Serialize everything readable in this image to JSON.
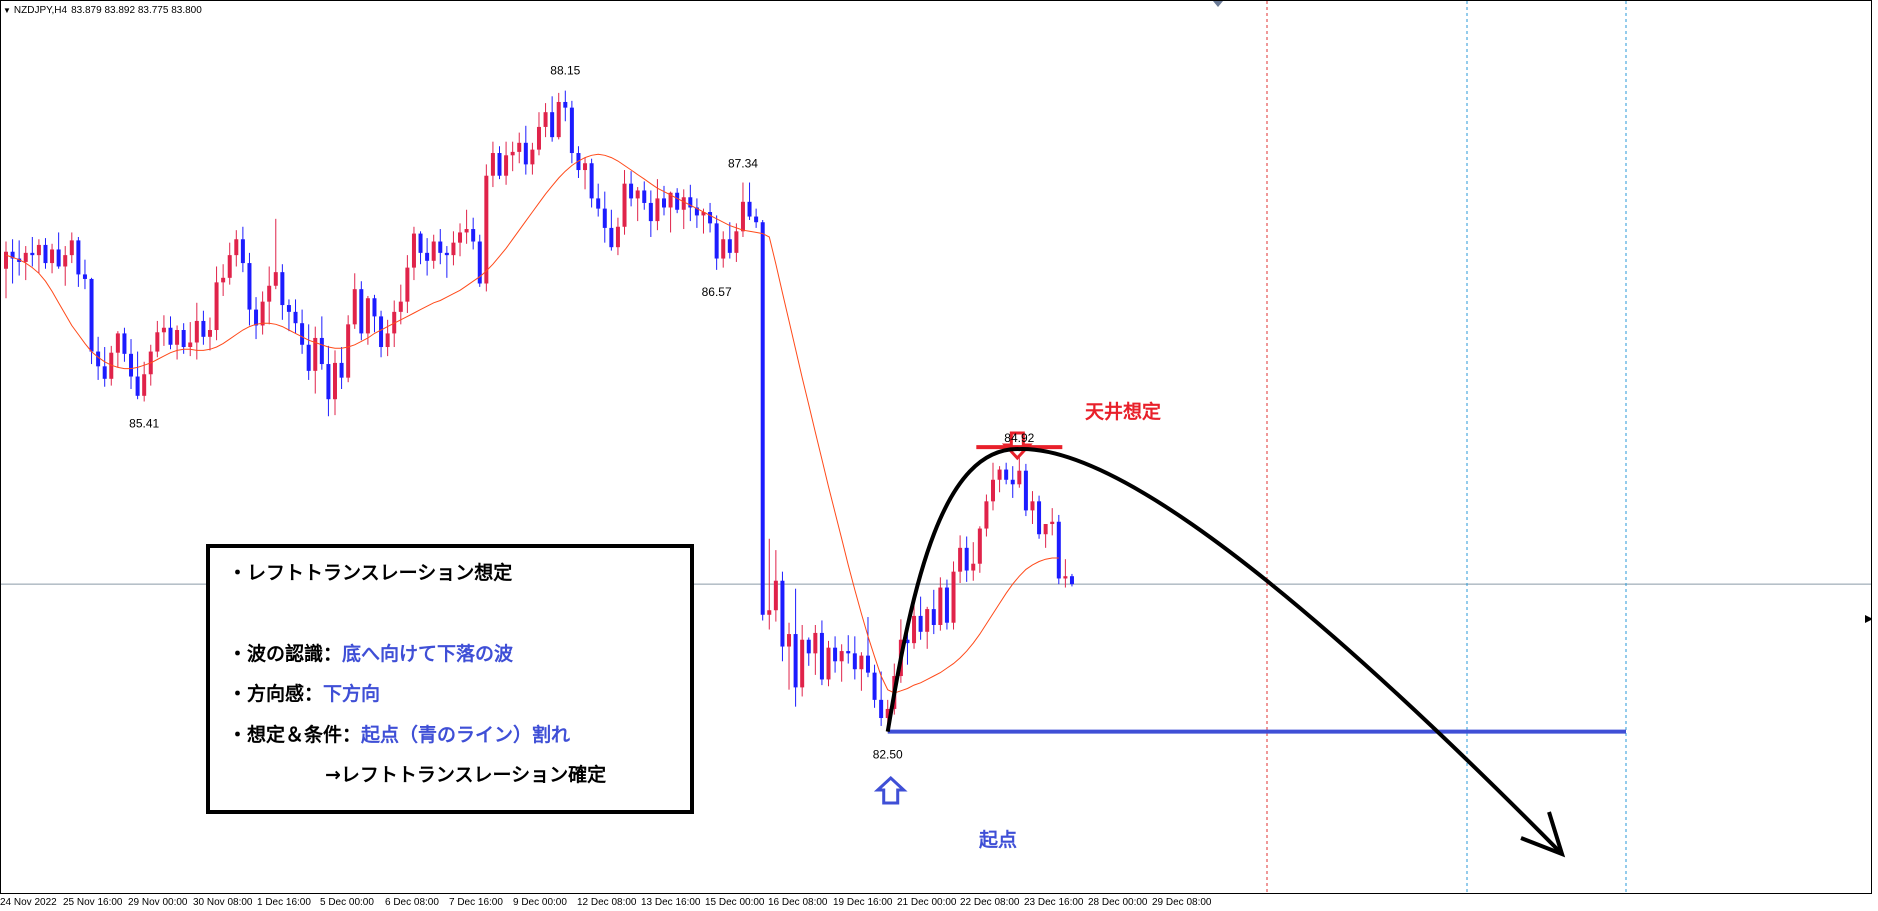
{
  "symbol": {
    "name": "NZDJPY,H4",
    "open": "83.879",
    "high": "83.892",
    "low": "83.775",
    "close": "83.800"
  },
  "annotations": {
    "high_label": "88.15",
    "h2_label": "87.34",
    "l2_label": "86.57",
    "low_left": "85.41",
    "top_value": "84.92",
    "start_value": "82.50",
    "top_title": "天井想定",
    "start_title": "起点"
  },
  "note": {
    "line1": "・レフトトランスレーション想定",
    "line2_label": "・波の認識：",
    "line2_value": "底へ向けて下落の波",
    "line3_label": "・方向感：",
    "line3_value": "下方向",
    "line4_label": "・想定＆条件：",
    "line4_value": "起点（青のライン）割れ",
    "line5": "→レフトトランスレーション確定"
  },
  "xaxis_labels": [
    "24 Nov 2022",
    "25 Nov 16:00",
    "29 Nov 00:00",
    "30 Nov 08:00",
    "1 Dec 16:00",
    "5 Dec 00:00",
    "6 Dec 08:00",
    "7 Dec 16:00",
    "9 Dec 00:00",
    "12 Dec 08:00",
    "13 Dec 16:00",
    "15 Dec 00:00",
    "16 Dec 08:00",
    "19 Dec 16:00",
    "21 Dec 00:00",
    "22 Dec 08:00",
    "23 Dec 16:00",
    "28 Dec 00:00",
    "29 Dec 08:00"
  ],
  "colors": {
    "bull": "#e0234a",
    "bear": "#1c1cff",
    "ma": "#ff4a1a",
    "red_marker": "#e8202a",
    "blue_line": "#3f4fd6",
    "vline_red": "#e03030",
    "vline_blue": "#2a9ad8",
    "hline": "#8a9aa8"
  },
  "chart_data": {
    "type": "candlestick",
    "ylim": [
      81.06,
      88.94
    ],
    "current_price": 83.8,
    "start_level": 82.5,
    "top_level": 84.92,
    "candles": [
      [
        86.58,
        86.82,
        86.32,
        86.73
      ],
      [
        86.73,
        86.84,
        86.45,
        86.67
      ],
      [
        86.67,
        86.83,
        86.52,
        86.64
      ],
      [
        86.64,
        86.78,
        86.48,
        86.72
      ],
      [
        86.72,
        86.86,
        86.6,
        86.7
      ],
      [
        86.7,
        86.84,
        86.54,
        86.79
      ],
      [
        86.79,
        86.85,
        86.58,
        86.63
      ],
      [
        86.63,
        86.8,
        86.54,
        86.75
      ],
      [
        86.75,
        86.9,
        86.58,
        86.6
      ],
      [
        86.6,
        86.78,
        86.43,
        86.7
      ],
      [
        86.7,
        86.9,
        86.63,
        86.83
      ],
      [
        86.83,
        86.86,
        86.42,
        86.53
      ],
      [
        86.53,
        86.66,
        86.4,
        86.49
      ],
      [
        86.49,
        86.5,
        85.74,
        85.85
      ],
      [
        85.85,
        85.98,
        85.6,
        85.72
      ],
      [
        85.72,
        85.89,
        85.54,
        85.61
      ],
      [
        85.61,
        85.9,
        85.55,
        85.84
      ],
      [
        85.84,
        86.03,
        85.71,
        86.01
      ],
      [
        86.01,
        86.06,
        85.76,
        85.83
      ],
      [
        85.83,
        85.96,
        85.52,
        85.63
      ],
      [
        85.63,
        85.85,
        85.43,
        85.46
      ],
      [
        85.46,
        85.76,
        85.41,
        85.65
      ],
      [
        85.65,
        85.91,
        85.55,
        85.85
      ],
      [
        85.85,
        86.12,
        85.8,
        86.02
      ],
      [
        86.02,
        86.17,
        85.9,
        86.06
      ],
      [
        86.06,
        86.16,
        85.87,
        85.91
      ],
      [
        85.91,
        86.08,
        85.78,
        86.04
      ],
      [
        86.04,
        86.1,
        85.83,
        85.89
      ],
      [
        85.89,
        86.11,
        85.81,
        85.93
      ],
      [
        85.93,
        86.28,
        85.78,
        86.12
      ],
      [
        86.12,
        86.21,
        85.91,
        85.98
      ],
      [
        85.98,
        86.15,
        85.86,
        86.04
      ],
      [
        86.04,
        86.6,
        85.95,
        86.46
      ],
      [
        86.46,
        86.62,
        86.34,
        86.5
      ],
      [
        86.5,
        86.81,
        86.44,
        86.7
      ],
      [
        86.7,
        86.92,
        86.6,
        86.84
      ],
      [
        86.84,
        86.95,
        86.55,
        86.63
      ],
      [
        86.63,
        86.72,
        86.08,
        86.22
      ],
      [
        86.22,
        86.33,
        85.96,
        86.08
      ],
      [
        86.08,
        86.38,
        86.0,
        86.29
      ],
      [
        86.29,
        86.6,
        86.09,
        86.43
      ],
      [
        86.43,
        87.02,
        86.4,
        86.55
      ],
      [
        86.55,
        86.62,
        86.13,
        86.26
      ],
      [
        86.26,
        86.31,
        86.03,
        86.2
      ],
      [
        86.2,
        86.31,
        86.01,
        86.1
      ],
      [
        86.1,
        86.22,
        85.83,
        85.91
      ],
      [
        85.91,
        86.09,
        85.6,
        85.68
      ],
      [
        85.68,
        86.07,
        85.48,
        85.97
      ],
      [
        85.97,
        86.16,
        85.69,
        85.74
      ],
      [
        85.74,
        85.9,
        85.28,
        85.43
      ],
      [
        85.43,
        85.86,
        85.29,
        85.75
      ],
      [
        85.75,
        85.89,
        85.52,
        85.62
      ],
      [
        85.62,
        86.17,
        85.58,
        86.09
      ],
      [
        86.09,
        86.54,
        86.05,
        86.4
      ],
      [
        86.4,
        86.47,
        85.95,
        86.01
      ],
      [
        86.01,
        86.34,
        85.91,
        86.32
      ],
      [
        86.32,
        86.35,
        86.02,
        86.16
      ],
      [
        86.16,
        86.21,
        85.8,
        85.89
      ],
      [
        85.89,
        86.13,
        85.81,
        86.01
      ],
      [
        86.01,
        86.3,
        85.89,
        86.2
      ],
      [
        86.2,
        86.44,
        86.09,
        86.29
      ],
      [
        86.29,
        86.7,
        86.19,
        86.59
      ],
      [
        86.59,
        86.95,
        86.48,
        86.89
      ],
      [
        86.89,
        86.91,
        86.62,
        86.72
      ],
      [
        86.72,
        86.85,
        86.52,
        86.65
      ],
      [
        86.65,
        86.88,
        86.58,
        86.82
      ],
      [
        86.82,
        86.93,
        86.62,
        86.72
      ],
      [
        86.72,
        86.78,
        86.5,
        86.7
      ],
      [
        86.7,
        86.91,
        86.61,
        86.81
      ],
      [
        86.81,
        86.98,
        86.69,
        86.9
      ],
      [
        86.9,
        87.1,
        86.8,
        86.93
      ],
      [
        86.93,
        87.03,
        86.75,
        86.82
      ],
      [
        86.82,
        86.88,
        86.42,
        86.45
      ],
      [
        86.45,
        87.5,
        86.38,
        87.4
      ],
      [
        87.4,
        87.7,
        87.3,
        87.6
      ],
      [
        87.6,
        87.66,
        87.37,
        87.4
      ],
      [
        87.4,
        87.7,
        87.32,
        87.58
      ],
      [
        87.58,
        87.7,
        87.44,
        87.61
      ],
      [
        87.61,
        87.78,
        87.51,
        87.69
      ],
      [
        87.69,
        87.84,
        87.41,
        87.5
      ],
      [
        87.5,
        87.69,
        87.41,
        87.63
      ],
      [
        87.63,
        87.96,
        87.58,
        87.83
      ],
      [
        87.83,
        88.04,
        87.74,
        87.96
      ],
      [
        87.96,
        88.1,
        87.7,
        87.74
      ],
      [
        87.74,
        88.13,
        87.72,
        88.05
      ],
      [
        88.05,
        88.15,
        87.88,
        88.0
      ],
      [
        88.0,
        88.06,
        87.51,
        87.6
      ],
      [
        87.6,
        87.66,
        87.38,
        87.45
      ],
      [
        87.45,
        87.56,
        87.28,
        87.51
      ],
      [
        87.51,
        87.55,
        87.12,
        87.2
      ],
      [
        87.2,
        87.33,
        87.04,
        87.11
      ],
      [
        87.11,
        87.26,
        86.81,
        86.94
      ],
      [
        86.94,
        87.1,
        86.74,
        86.77
      ],
      [
        86.77,
        87.03,
        86.7,
        86.95
      ],
      [
        86.95,
        87.45,
        86.88,
        87.33
      ],
      [
        87.33,
        87.44,
        87.13,
        87.2
      ],
      [
        87.2,
        87.3,
        87.0,
        87.27
      ],
      [
        87.27,
        87.35,
        87.1,
        87.16
      ],
      [
        87.16,
        87.27,
        86.86,
        87.0
      ],
      [
        87.0,
        87.37,
        86.92,
        87.2
      ],
      [
        87.2,
        87.31,
        87.05,
        87.12
      ],
      [
        87.12,
        87.26,
        86.9,
        87.25
      ],
      [
        87.25,
        87.29,
        87.07,
        87.1
      ],
      [
        87.1,
        87.28,
        86.93,
        87.21
      ],
      [
        87.21,
        87.32,
        87.0,
        87.12
      ],
      [
        87.12,
        87.2,
        86.94,
        87.05
      ],
      [
        87.05,
        87.11,
        86.89,
        87.08
      ],
      [
        87.08,
        87.16,
        86.9,
        86.98
      ],
      [
        86.98,
        87.05,
        86.57,
        86.67
      ],
      [
        86.67,
        86.91,
        86.59,
        86.84
      ],
      [
        86.84,
        86.99,
        86.67,
        86.72
      ],
      [
        86.72,
        86.98,
        86.64,
        86.91
      ],
      [
        86.91,
        87.34,
        86.86,
        87.17
      ],
      [
        87.17,
        87.34,
        87.01,
        87.04
      ],
      [
        87.04,
        87.11,
        86.94,
        86.99
      ],
      [
        86.99,
        87.01,
        83.48,
        83.53
      ],
      [
        83.53,
        84.2,
        83.4,
        83.57
      ],
      [
        83.57,
        84.1,
        83.47,
        83.83
      ],
      [
        83.83,
        83.91,
        83.12,
        83.25
      ],
      [
        83.25,
        83.46,
        82.87,
        83.36
      ],
      [
        83.36,
        83.76,
        82.72,
        82.89
      ],
      [
        82.89,
        83.44,
        82.81,
        83.31
      ],
      [
        83.31,
        83.33,
        83.08,
        83.19
      ],
      [
        83.19,
        83.44,
        83.0,
        83.37
      ],
      [
        83.37,
        83.48,
        82.91,
        82.96
      ],
      [
        82.96,
        83.3,
        82.9,
        83.24
      ],
      [
        83.24,
        83.34,
        83.02,
        83.12
      ],
      [
        83.12,
        83.27,
        82.94,
        83.21
      ],
      [
        83.21,
        83.35,
        83.1,
        83.19
      ],
      [
        83.19,
        83.34,
        82.96,
        83.05
      ],
      [
        83.05,
        83.2,
        82.86,
        83.17
      ],
      [
        83.17,
        83.51,
        82.98,
        83.02
      ],
      [
        83.02,
        83.09,
        82.71,
        82.78
      ],
      [
        82.78,
        83.03,
        82.55,
        82.62
      ],
      [
        82.62,
        82.78,
        82.5,
        82.7
      ],
      [
        82.7,
        83.1,
        82.65,
        82.99
      ],
      [
        82.99,
        83.49,
        82.93,
        83.31
      ],
      [
        83.31,
        83.39,
        83.09,
        83.28
      ],
      [
        83.28,
        83.67,
        83.23,
        83.52
      ],
      [
        83.52,
        83.69,
        83.31,
        83.38
      ],
      [
        83.38,
        83.6,
        83.23,
        83.58
      ],
      [
        83.58,
        83.75,
        83.36,
        83.44
      ],
      [
        83.44,
        83.86,
        83.39,
        83.77
      ],
      [
        83.77,
        83.84,
        83.4,
        83.46
      ],
      [
        83.46,
        84.0,
        83.4,
        83.91
      ],
      [
        83.91,
        84.23,
        83.81,
        84.12
      ],
      [
        84.12,
        84.22,
        83.82,
        83.92
      ],
      [
        83.92,
        84.17,
        83.83,
        83.98
      ],
      [
        83.98,
        84.31,
        83.9,
        84.29
      ],
      [
        84.29,
        84.59,
        84.22,
        84.53
      ],
      [
        84.53,
        84.87,
        84.45,
        84.72
      ],
      [
        84.72,
        84.84,
        84.61,
        84.81
      ],
      [
        84.81,
        84.87,
        84.68,
        84.72
      ],
      [
        84.72,
        84.84,
        84.56,
        84.68
      ],
      [
        84.68,
        84.92,
        84.65,
        84.8
      ],
      [
        84.8,
        84.86,
        84.4,
        84.45
      ],
      [
        84.45,
        84.62,
        84.33,
        84.53
      ],
      [
        84.53,
        84.58,
        84.2,
        84.24
      ],
      [
        84.24,
        84.33,
        84.12,
        84.33
      ],
      [
        84.33,
        84.47,
        84.23,
        84.35
      ],
      [
        84.35,
        84.41,
        83.8,
        83.85
      ],
      [
        83.85,
        84.02,
        83.77,
        83.87
      ],
      [
        83.87,
        83.89,
        83.78,
        83.8
      ]
    ],
    "ma": [
      86.7,
      86.68,
      86.66,
      86.63,
      86.59,
      86.54,
      86.47,
      86.38,
      86.28,
      86.18,
      86.08,
      86.0,
      85.92,
      85.85,
      85.8,
      85.76,
      85.73,
      85.71,
      85.7,
      85.7,
      85.71,
      85.73,
      85.75,
      85.78,
      85.81,
      85.84,
      85.86,
      85.87,
      85.87,
      85.86,
      85.86,
      85.87,
      85.89,
      85.92,
      85.96,
      86.0,
      86.04,
      86.07,
      86.09,
      86.1,
      86.1,
      86.09,
      86.07,
      86.04,
      86.01,
      85.98,
      85.95,
      85.93,
      85.91,
      85.89,
      85.88,
      85.88,
      85.89,
      85.91,
      85.94,
      85.97,
      86.01,
      86.04,
      86.07,
      86.1,
      86.13,
      86.16,
      86.19,
      86.22,
      86.25,
      86.28,
      86.3,
      86.33,
      86.36,
      86.39,
      86.43,
      86.47,
      86.51,
      86.56,
      86.62,
      86.69,
      86.76,
      86.84,
      86.92,
      87.0,
      87.08,
      87.16,
      87.24,
      87.31,
      87.38,
      87.44,
      87.49,
      87.53,
      87.56,
      87.58,
      87.59,
      87.58,
      87.56,
      87.53,
      87.49,
      87.45,
      87.41,
      87.37,
      87.33,
      87.29,
      87.26,
      87.23,
      87.2,
      87.17,
      87.14,
      87.11,
      87.08,
      87.05,
      87.02,
      86.99,
      86.96,
      86.94,
      86.92,
      86.91,
      86.9,
      86.89,
      86.86,
      86.62,
      86.37,
      86.12,
      85.87,
      85.62,
      85.38,
      85.14,
      84.9,
      84.66,
      84.43,
      84.2,
      83.97,
      83.75,
      83.54,
      83.34,
      83.16,
      82.99,
      82.87,
      82.84,
      82.86,
      82.88,
      82.91,
      82.93,
      82.96,
      82.99,
      83.02,
      83.06,
      83.1,
      83.15,
      83.21,
      83.28,
      83.36,
      83.45,
      83.54,
      83.63,
      83.72,
      83.8,
      83.87,
      83.93,
      83.97,
      84.0,
      84.02,
      84.03,
      84.03
    ]
  }
}
